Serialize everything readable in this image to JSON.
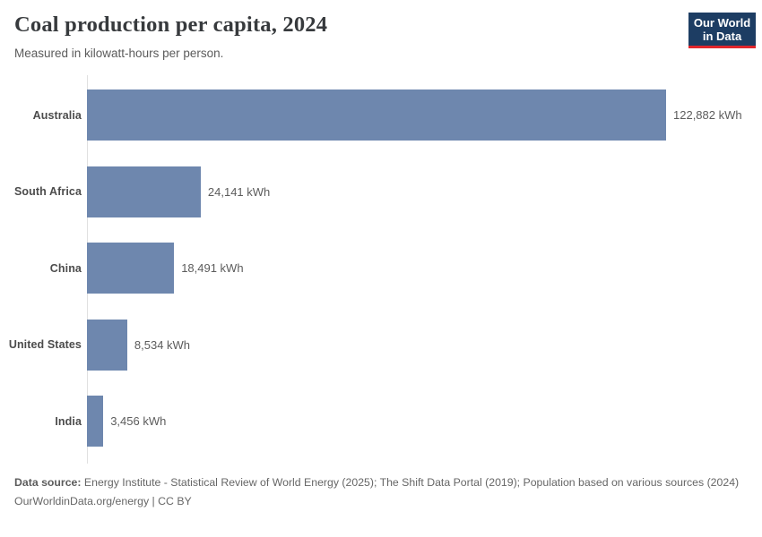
{
  "header": {
    "title": "Coal production per capita, 2024",
    "subtitle": "Measured in kilowatt-hours per person.",
    "logo": {
      "line1": "Our World",
      "line2": "in Data",
      "background": "#1d3d63",
      "accent": "#e0262c"
    }
  },
  "chart_data": {
    "type": "bar",
    "orientation": "horizontal",
    "title": "Coal production per capita, 2024",
    "subtitle": "Measured in kilowatt-hours per person.",
    "unit": "kWh",
    "categories": [
      "Australia",
      "South Africa",
      "China",
      "United States",
      "India"
    ],
    "values": [
      122882,
      24141,
      18491,
      8534,
      3456
    ],
    "value_labels": [
      "122,882 kWh",
      "24,141 kWh",
      "18,491 kWh",
      "8,534 kWh",
      "3,456 kWh"
    ],
    "xlim": [
      0,
      122882
    ],
    "bar_color": "#6e87ae",
    "axis_color": "#e0e0e0",
    "grid": false,
    "legend": "none"
  },
  "footer": {
    "source_label": "Data source:",
    "source_text": " Energy Institute - Statistical Review of World Energy (2025); The Shift Data Portal (2019); Population based on various sources (2024)",
    "link_text": "OurWorldinData.org/energy | CC BY"
  }
}
